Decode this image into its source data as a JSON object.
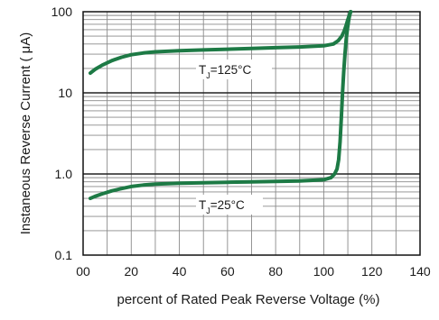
{
  "chart_data": {
    "type": "line",
    "title": "",
    "xlabel": "percent of Rated  Peak   Reverse  Voltage (%)",
    "ylabel": "Instaneous  Reverse  Current  ( μA)",
    "x_ticks": [
      "00",
      "20",
      "40",
      "60",
      "80",
      "100",
      "120",
      "140"
    ],
    "y_ticks": [
      "0.1",
      "1.0",
      "10",
      "100"
    ],
    "xlim": [
      0,
      140
    ],
    "ylim": [
      0.1,
      100
    ],
    "y_scale": "log",
    "grid": true,
    "series_color": "#1d7a45",
    "series": [
      {
        "name": "T_J=125°C",
        "x": [
          3,
          5,
          8,
          12,
          16,
          20,
          25,
          30,
          40,
          50,
          60,
          70,
          80,
          90,
          100,
          104,
          106,
          107.5,
          108.5,
          109.3,
          110,
          110.7,
          111.3
        ],
        "y": [
          17.5,
          19.5,
          22,
          25,
          27.5,
          29.5,
          31,
          32,
          33,
          33.8,
          34.5,
          35.2,
          36,
          36.8,
          38,
          40,
          44,
          50,
          58,
          68,
          80,
          92,
          100
        ]
      },
      {
        "name": "T_J=25°C",
        "x": [
          3,
          5,
          8,
          12,
          16,
          20,
          25,
          30,
          40,
          50,
          60,
          70,
          80,
          90,
          100,
          103,
          104.5,
          105.5,
          106.2,
          106.8,
          107.3,
          107.8,
          108.3,
          108.8,
          109.3,
          109.8,
          110.4,
          111.1
        ],
        "y": [
          0.5,
          0.53,
          0.57,
          0.62,
          0.66,
          0.7,
          0.73,
          0.75,
          0.77,
          0.78,
          0.79,
          0.8,
          0.81,
          0.82,
          0.85,
          0.9,
          1.0,
          1.15,
          1.5,
          2.5,
          5,
          10,
          18,
          30,
          45,
          60,
          80,
          100
        ]
      }
    ],
    "annotations": [
      {
        "prefix": "T",
        "sub": "J",
        "rest": "=125°C"
      },
      {
        "prefix": "T",
        "sub": "J",
        "rest": "=25°C"
      }
    ]
  }
}
